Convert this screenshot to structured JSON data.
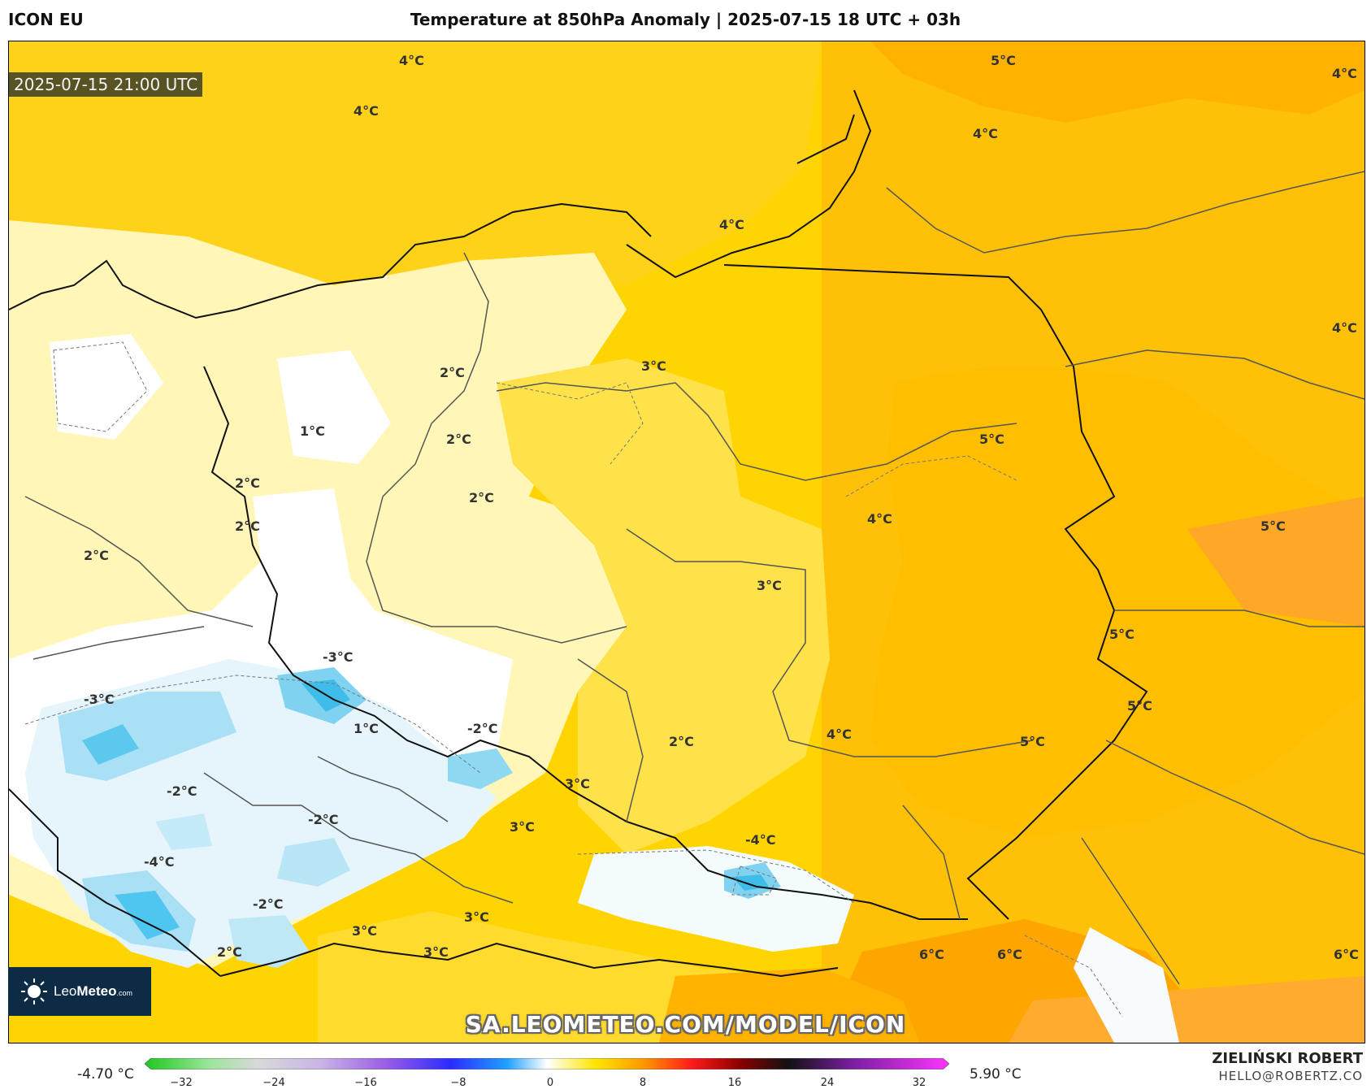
{
  "header": {
    "model": "ICON EU",
    "title": "Temperature at 850hPa Anomaly | 2025-07-15 18 UTC + 03h"
  },
  "map": {
    "timestamp": "2025-07-15 21:00 UTC",
    "watermark": "SA.LEOMETEO.COM/MODEL/ICON",
    "logo_text_a": "Leo",
    "logo_text_b": "Meteo",
    "logo_text_c": ".com",
    "labels": [
      "4°C",
      "5°C",
      "4°C",
      "4°C",
      "4°C",
      "4°C",
      "4°C",
      "3°C",
      "2°C",
      "1°C",
      "2°C",
      "2°C",
      "2°C",
      "2°C",
      "5°C",
      "4°C",
      "5°C",
      "2°C",
      "3°C",
      "5°C",
      "5°C",
      "-3°C",
      "-3°C",
      "1°C",
      "-2°C",
      "2°C",
      "4°C",
      "5°C",
      "-2°C",
      "-2°C",
      "3°C",
      "3°C",
      "-4°C",
      "-4°C",
      "-2°C",
      "3°C",
      "3°C",
      "2°C",
      "3°C",
      "6°C",
      "6°C",
      "6°C"
    ],
    "colors": {
      "anomaly_neg_light": "#e3f3fb",
      "anomaly_neg_mid": "#a8e0f5",
      "anomaly_neg_strong": "#4fc6ef",
      "anomaly_zero": "#ffffff",
      "anomaly_1": "#fff5bf",
      "anomaly_2": "#fff29d",
      "anomaly_3": "#ffe033",
      "anomaly_4": "#ffd400",
      "anomaly_5": "#ffbf00",
      "anomaly_6": "#ffa500"
    }
  },
  "colorbar": {
    "min_label": "-4.70 °C",
    "max_label": "5.90 °C",
    "ticks": [
      "−32",
      "−24",
      "−16",
      "−8",
      "0",
      "8",
      "16",
      "24",
      "32"
    ]
  },
  "author": {
    "name": "ZIELIŃSKI ROBERT",
    "email": "HELLO@ROBERTZ.CO"
  }
}
